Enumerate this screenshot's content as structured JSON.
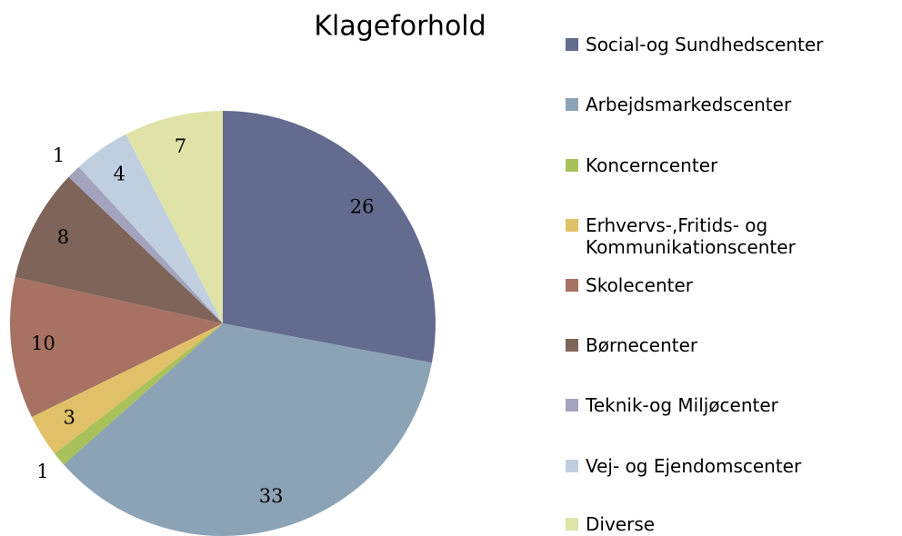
{
  "chart_data": {
    "type": "pie",
    "title": "Klageforhold",
    "categories": [
      "Social-og Sundhedscenter",
      "Arbejdsmarkedscenter",
      "Koncerncenter",
      "Erhvervs-,Fritids- og Kommunikationscenter",
      "Skolecenter",
      "Børnecenter",
      "Teknik-og Miljøcenter",
      "Vej- og Ejendomscenter",
      "Diverse"
    ],
    "values": [
      26,
      33,
      1,
      3,
      10,
      8,
      1,
      4,
      7
    ],
    "colors": [
      "#636b8f",
      "#8ca3b5",
      "#a9c15a",
      "#e0c068",
      "#a87262",
      "#7e6459",
      "#a3a3bd",
      "#c0cfe0",
      "#dfe3a8"
    ],
    "legend": "right"
  }
}
